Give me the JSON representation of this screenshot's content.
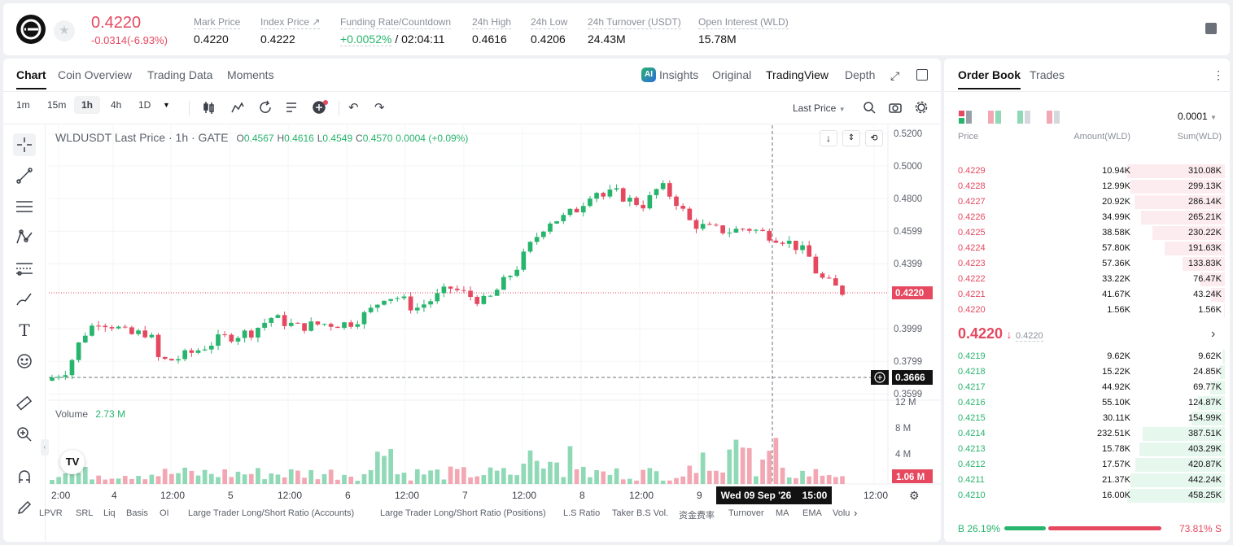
{
  "header": {
    "price": "0.4220",
    "change": "-0.0314(-6.93%)",
    "stats": [
      {
        "label": "Mark Price",
        "value": "0.4220"
      },
      {
        "label": "Index Price ↗",
        "value": "0.4222"
      },
      {
        "label": "Funding Rate/Countdown",
        "value_rate": "+0.0052%",
        "value_time": " / 02:04:11"
      },
      {
        "label": "24h High",
        "value": "0.4616"
      },
      {
        "label": "24h Low",
        "value": "0.4206"
      },
      {
        "label": "24h Turnover (USDT)",
        "value": "24.43M"
      },
      {
        "label": "Open Interest (WLD)",
        "value": "15.78M"
      }
    ]
  },
  "chart_tabs": [
    "Chart",
    "Coin Overview",
    "Trading Data",
    "Moments"
  ],
  "view_tabs": [
    "Insights",
    "Original",
    "TradingView",
    "Depth"
  ],
  "intervals": [
    "1m",
    "15m",
    "1h",
    "4h",
    "1D"
  ],
  "price_type": "Last Price",
  "legend": {
    "symbol": "WLDUSDT Last Price · 1h · GATE",
    "o_k": "O",
    "o": "0.4567",
    "h_k": "H",
    "h": "0.4616",
    "l_k": "L",
    "l": "0.4549",
    "c_k": "C",
    "c": "0.4570",
    "chg": "0.0004 (+0.09%)"
  },
  "volume": {
    "label": "Volume",
    "value": "2.73 M"
  },
  "price_axis": [
    "0.5200",
    "0.5000",
    "0.4800",
    "0.4599",
    "0.4399",
    "0.3999",
    "0.3799",
    "0.3599"
  ],
  "current_price_tag": "0.4220",
  "cross_price_tag": "0.3666",
  "vol_axis": [
    "12 M",
    "8 M",
    "4 M"
  ],
  "vol_tag": "1.06 M",
  "time_axis": [
    "2:00",
    "4",
    "12:00",
    "5",
    "12:00",
    "6",
    "12:00",
    "7",
    "12:00",
    "8",
    "12:00",
    "9",
    "12:00"
  ],
  "cross_time": "Wed 09 Sep '26    15:00",
  "indicators": [
    "LPVR",
    "SRL",
    "Liq",
    "Basis",
    "OI",
    "Large Trader Long/Short Ratio (Accounts)",
    "Large Trader Long/Short Ratio (Positions)",
    "L.S Ratio",
    "Taker B.S Vol.",
    "资金费率",
    "Turnover",
    "MA",
    "EMA",
    "Volu"
  ],
  "orderbook": {
    "tabs": [
      "Order Book",
      "Trades"
    ],
    "precision": "0.0001",
    "cols": [
      "Price",
      "Amount(WLD)",
      "Sum(WLD)"
    ],
    "asks": [
      {
        "p": "0.4229",
        "a": "10.94K",
        "s": "310.08K",
        "d": 1.0
      },
      {
        "p": "0.4228",
        "a": "12.99K",
        "s": "299.13K",
        "d": 0.965
      },
      {
        "p": "0.4227",
        "a": "20.92K",
        "s": "286.14K",
        "d": 0.923
      },
      {
        "p": "0.4226",
        "a": "34.99K",
        "s": "265.21K",
        "d": 0.855
      },
      {
        "p": "0.4225",
        "a": "38.58K",
        "s": "230.22K",
        "d": 0.742
      },
      {
        "p": "0.4224",
        "a": "57.80K",
        "s": "191.63K",
        "d": 0.618
      },
      {
        "p": "0.4223",
        "a": "57.36K",
        "s": "133.83K",
        "d": 0.432
      },
      {
        "p": "0.4222",
        "a": "33.22K",
        "s": "76.47K",
        "d": 0.247
      },
      {
        "p": "0.4221",
        "a": "41.67K",
        "s": "43.24K",
        "d": 0.139
      },
      {
        "p": "0.4220",
        "a": "1.56K",
        "s": "1.56K",
        "d": 0.005
      }
    ],
    "mid": "0.4220",
    "mid_mark": "0.4220",
    "bids": [
      {
        "p": "0.4219",
        "a": "9.62K",
        "s": "9.62K",
        "d": 0.021
      },
      {
        "p": "0.4218",
        "a": "15.22K",
        "s": "24.85K",
        "d": 0.054
      },
      {
        "p": "0.4217",
        "a": "44.92K",
        "s": "69.77K",
        "d": 0.152
      },
      {
        "p": "0.4216",
        "a": "55.10K",
        "s": "124.87K",
        "d": 0.272
      },
      {
        "p": "0.4215",
        "a": "30.11K",
        "s": "154.99K",
        "d": 0.338
      },
      {
        "p": "0.4214",
        "a": "232.51K",
        "s": "387.51K",
        "d": 0.845
      },
      {
        "p": "0.4213",
        "a": "15.78K",
        "s": "403.29K",
        "d": 0.879
      },
      {
        "p": "0.4212",
        "a": "17.57K",
        "s": "420.87K",
        "d": 0.918
      },
      {
        "p": "0.4211",
        "a": "21.37K",
        "s": "442.24K",
        "d": 0.964
      },
      {
        "p": "0.4210",
        "a": "16.00K",
        "s": "458.25K",
        "d": 1.0
      }
    ],
    "buy_pct": "B 26.19%",
    "sell_pct": "73.81% S",
    "buy_ratio": 0.2619
  },
  "colors": {
    "up": "#27b46c",
    "down": "#e5485f",
    "up_vol": "#8fd9b6",
    "down_vol": "#f2a7b3"
  }
}
